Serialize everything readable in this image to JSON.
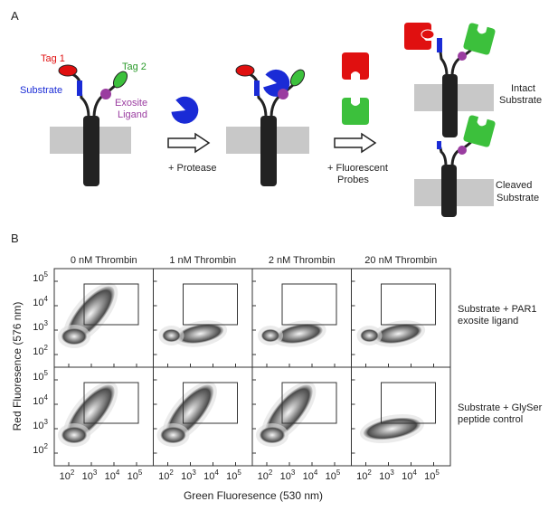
{
  "panel_a": {
    "label": "A",
    "tag1": "Tag 1",
    "tag2": "Tag 2",
    "substrate": "Substrate",
    "exosite_ligand": [
      "Exosite",
      "Ligand"
    ],
    "protease_step": "+ Protease",
    "probes_step": [
      "+ Fluorescent",
      "Probes"
    ],
    "intact": [
      "Intact",
      "Substrate"
    ],
    "cleaved": [
      "Cleaved",
      "Substrate"
    ]
  },
  "panel_b": {
    "label": "B",
    "columns": [
      "0 nM Thrombin",
      "1 nM Thrombin",
      "2 nM Thrombin",
      "20 nM Thrombin"
    ],
    "rows": [
      [
        "Substrate + PAR1",
        "exosite ligand"
      ],
      [
        "Substrate + GlySer",
        "peptide control"
      ]
    ],
    "x_axis_label": "Green Fluoresence (530 nm)",
    "y_axis_label": "Red Fluoresence (576 nm)",
    "tick_base": "10",
    "tick_exponents": [
      2,
      3,
      4,
      5
    ]
  }
}
